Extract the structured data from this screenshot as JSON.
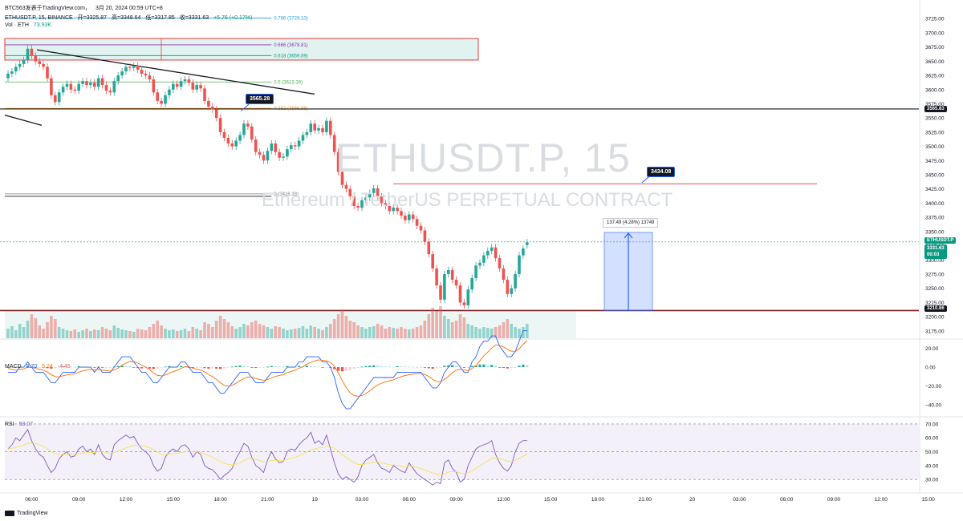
{
  "header": {
    "attribution": "BTC563发表于TradingView.com，",
    "datetime": "3月 20, 2024 00:59 UTC+8",
    "symbol_line": "ETHUSDT.P, 15, BINANCE",
    "open": "开=3325.87",
    "high": "高=3348.64",
    "low": "低=3317.85",
    "close": "收=3331.63",
    "change": "+5.76 (+0.17%)",
    "vol_label": "Vol · ETH",
    "vol_value": "73.93K"
  },
  "watermark": {
    "title": "ETHUSDT.P, 15",
    "subtitle": "Ethereum / TetherUS PERPETUAL CONTRACT"
  },
  "labels": {
    "callout_1": "3565.28",
    "callout_2": "3434.08",
    "measure": "137.49 (4.28%) 13749",
    "price_tag": "ETHUSDT.P",
    "price_value": "3331.63",
    "price_countdown": "00:03",
    "level_high": "3565.83",
    "level_low": "3210.86"
  },
  "fib_levels": [
    {
      "text": "0.786 (3726.10)",
      "price": 3726.1,
      "color": "#26a0da"
    },
    {
      "text": "0.666 (3678.81)",
      "price": 3678.81,
      "color": "#9c27b0"
    },
    {
      "text": "0.618 (3659.89)",
      "price": 3659.89,
      "color": "#089981"
    },
    {
      "text": "0.5 (3613.39)",
      "price": 3613.39,
      "color": "#4caf50"
    },
    {
      "text": "0.382 (3566.88)",
      "price": 3566.88,
      "color": "#ff9800"
    },
    {
      "text": "0 (3416.33)",
      "price": 3416.33,
      "color": "#787b86"
    }
  ],
  "macd": {
    "label": "MACD",
    "v1": "9.70",
    "v2": "5.24",
    "v3": "-4.45"
  },
  "rsi": {
    "label": "RSI",
    "v1": "58.07"
  },
  "logo": "TradingView",
  "colors": {
    "up": "#26a69a",
    "down": "#ef5350",
    "macd_line": "#2962ff",
    "signal_line": "#ff6d00",
    "rsi_line": "#7e57c2",
    "rsi_ma": "#f7e05a"
  },
  "chart_data": {
    "type": "candlestick",
    "interval": "15m",
    "price_axis": {
      "ticks": [
        3175,
        3200,
        3225,
        3250,
        3275,
        3300,
        3325,
        3350,
        3375,
        3400,
        3425,
        3450,
        3475,
        3500,
        3525,
        3550,
        3575,
        3600,
        3625,
        3650,
        3675,
        3700,
        3725
      ],
      "tick_labels": [
        "3175.00",
        "3200.00",
        "3225.00",
        "3250.00",
        "3275.00",
        "3300.00",
        "3325.00",
        "3350.00",
        "3375.00",
        "3400.00",
        "3425.00",
        "3450.00",
        "3475.00",
        "3500.00",
        "3525.00",
        "3550.00",
        "3575.00",
        "3600.00",
        "3625.00",
        "3650.00",
        "3675.00",
        "3700.00",
        "3725.00"
      ],
      "range": [
        3162,
        3738
      ]
    },
    "macd_axis": {
      "tick_labels": [
        "20.00",
        "0.00",
        "−20.00",
        "−40.00"
      ],
      "ticks": [
        20,
        0,
        -20,
        -40
      ],
      "range": [
        -50,
        28
      ]
    },
    "rsi_axis": {
      "tick_labels": [
        "70.00",
        "60.00",
        "50.00",
        "40.00",
        "30.00"
      ],
      "ticks": [
        70,
        60,
        50,
        40,
        30
      ],
      "range": [
        22,
        74
      ]
    },
    "time_axis": [
      {
        "label": "06:00",
        "index": 6
      },
      {
        "label": "09:00",
        "index": 18
      },
      {
        "label": "12:00",
        "index": 30
      },
      {
        "label": "15:00",
        "index": 42
      },
      {
        "label": "18:00",
        "index": 54
      },
      {
        "label": "21:00",
        "index": 66
      },
      {
        "label": "19",
        "index": 78
      },
      {
        "label": "03:00",
        "index": 90
      },
      {
        "label": "06:00",
        "index": 102
      },
      {
        "label": "09:00",
        "index": 114
      },
      {
        "label": "12:00",
        "index": 126
      },
      {
        "label": "15:00",
        "index": 138
      },
      {
        "label": "18:00",
        "index": 150
      },
      {
        "label": "21:00",
        "index": 162
      },
      {
        "label": "20",
        "index": 174
      },
      {
        "label": "03:00",
        "index": 186
      },
      {
        "label": "06:00",
        "index": 198
      },
      {
        "label": "09:00",
        "index": 210
      },
      {
        "label": "12:00",
        "index": 222
      },
      {
        "label": "15:00",
        "index": 234
      },
      {
        "label": "18:00",
        "index": 246
      },
      {
        "label": "21:00",
        "index": 258
      },
      {
        "label": "21",
        "index": 270
      },
      {
        "label": "03:00",
        "index": 282
      }
    ],
    "close": [
      3628,
      3632,
      3640,
      3645,
      3652,
      3672,
      3660,
      3650,
      3645,
      3640,
      3620,
      3590,
      3578,
      3595,
      3605,
      3610,
      3600,
      3598,
      3610,
      3615,
      3608,
      3612,
      3605,
      3620,
      3608,
      3598,
      3595,
      3615,
      3625,
      3632,
      3640,
      3638,
      3642,
      3635,
      3628,
      3625,
      3618,
      3595,
      3580,
      3575,
      3590,
      3600,
      3610,
      3605,
      3615,
      3618,
      3612,
      3600,
      3608,
      3602,
      3580,
      3570,
      3565,
      3550,
      3525,
      3515,
      3505,
      3500,
      3510,
      3520,
      3540,
      3535,
      3512,
      3490,
      3485,
      3475,
      3492,
      3505,
      3490,
      3480,
      3482,
      3495,
      3502,
      3500,
      3510,
      3520,
      3525,
      3540,
      3528,
      3532,
      3525,
      3545,
      3520,
      3490,
      3455,
      3432,
      3425,
      3412,
      3395,
      3392,
      3405,
      3410,
      3418,
      3426,
      3412,
      3400,
      3395,
      3386,
      3392,
      3386,
      3378,
      3370,
      3380,
      3372,
      3360,
      3352,
      3332,
      3310,
      3285,
      3255,
      3230,
      3275,
      3282,
      3265,
      3255,
      3225,
      3220,
      3248,
      3268,
      3290,
      3295,
      3308,
      3316,
      3322,
      3303,
      3285,
      3265,
      3240,
      3250,
      3275,
      3308,
      3320,
      3331
    ],
    "open": [
      3620,
      3628,
      3632,
      3640,
      3645,
      3652,
      3672,
      3660,
      3650,
      3645,
      3640,
      3620,
      3590,
      3578,
      3595,
      3605,
      3610,
      3600,
      3598,
      3610,
      3615,
      3608,
      3612,
      3605,
      3620,
      3608,
      3598,
      3595,
      3615,
      3625,
      3632,
      3640,
      3638,
      3642,
      3635,
      3628,
      3625,
      3618,
      3595,
      3580,
      3575,
      3590,
      3600,
      3610,
      3605,
      3615,
      3618,
      3612,
      3600,
      3608,
      3602,
      3580,
      3570,
      3565,
      3550,
      3525,
      3515,
      3505,
      3500,
      3510,
      3520,
      3540,
      3535,
      3512,
      3490,
      3485,
      3475,
      3492,
      3505,
      3490,
      3480,
      3482,
      3495,
      3502,
      3500,
      3510,
      3520,
      3525,
      3540,
      3528,
      3532,
      3525,
      3545,
      3520,
      3490,
      3455,
      3432,
      3425,
      3412,
      3395,
      3392,
      3405,
      3410,
      3418,
      3426,
      3412,
      3400,
      3395,
      3386,
      3392,
      3386,
      3378,
      3370,
      3380,
      3372,
      3360,
      3352,
      3332,
      3310,
      3285,
      3255,
      3230,
      3275,
      3282,
      3265,
      3255,
      3225,
      3220,
      3248,
      3268,
      3290,
      3295,
      3308,
      3316,
      3322,
      3303,
      3285,
      3265,
      3240,
      3250,
      3275,
      3308,
      3326
    ],
    "volume": [
      12,
      15,
      10,
      18,
      14,
      22,
      30,
      25,
      16,
      12,
      20,
      28,
      24,
      14,
      12,
      10,
      9,
      11,
      8,
      10,
      12,
      9,
      11,
      10,
      14,
      12,
      10,
      16,
      13,
      11,
      10,
      9,
      8,
      12,
      11,
      10,
      14,
      18,
      22,
      16,
      12,
      10,
      11,
      9,
      10,
      12,
      9,
      14,
      12,
      10,
      20,
      18,
      14,
      22,
      28,
      24,
      20,
      15,
      12,
      14,
      18,
      16,
      20,
      22,
      18,
      16,
      14,
      12,
      15,
      14,
      12,
      10,
      11,
      12,
      13,
      15,
      12,
      16,
      14,
      12,
      10,
      14,
      18,
      24,
      30,
      36,
      28,
      22,
      20,
      16,
      14,
      12,
      14,
      15,
      18,
      16,
      12,
      14,
      13,
      12,
      14,
      12,
      11,
      12,
      14,
      16,
      22,
      30,
      38,
      34,
      40,
      28,
      24,
      20,
      22,
      30,
      26,
      18,
      16,
      14,
      12,
      14,
      13,
      12,
      14,
      16,
      20,
      24,
      18,
      14,
      12,
      14,
      18
    ],
    "macd": [
      -1,
      -1,
      -1,
      0,
      0,
      1,
      0,
      -1,
      -1,
      -1,
      -2,
      -3,
      -3,
      -2,
      -1,
      -1,
      -1,
      -1,
      0,
      0,
      0,
      0,
      -1,
      0,
      -1,
      -1,
      -1,
      0,
      1,
      2,
      2,
      2,
      1,
      0,
      -1,
      -1,
      -2,
      -3,
      -3,
      -2,
      -1,
      0,
      0,
      0,
      1,
      1,
      0,
      -1,
      -1,
      -1,
      -2,
      -3,
      -3,
      -4,
      -5,
      -5,
      -4,
      -3,
      -2,
      -1,
      -1,
      -1,
      -2,
      -3,
      -3,
      -3,
      -2,
      -1,
      -1,
      -1,
      -1,
      0,
      0,
      0,
      1,
      1,
      2,
      2,
      2,
      2,
      1,
      1,
      0,
      -2,
      -5,
      -7,
      -8,
      -8,
      -7,
      -6,
      -5,
      -4,
      -3,
      -2,
      -2,
      -2,
      -2,
      -2,
      -2,
      -1,
      -1,
      -1,
      -1,
      -1,
      -1,
      -1,
      -2,
      -3,
      -4,
      -4,
      -3,
      -1,
      0,
      1,
      1,
      0,
      -1,
      -1,
      1,
      2,
      4,
      5,
      5,
      6,
      6,
      4,
      3,
      2,
      2,
      3,
      5,
      7,
      7
    ],
    "rsi": [
      52,
      55,
      60,
      58,
      62,
      66,
      58,
      52,
      48,
      46,
      40,
      35,
      38,
      45,
      48,
      50,
      46,
      47,
      52,
      54,
      50,
      52,
      48,
      55,
      48,
      45,
      44,
      55,
      58,
      60,
      62,
      60,
      61,
      56,
      52,
      50,
      47,
      40,
      36,
      38,
      46,
      50,
      52,
      50,
      54,
      55,
      52,
      46,
      50,
      48,
      40,
      38,
      37,
      34,
      30,
      33,
      35,
      38,
      45,
      50,
      56,
      54,
      46,
      40,
      38,
      35,
      44,
      50,
      45,
      42,
      43,
      50,
      52,
      51,
      55,
      58,
      60,
      64,
      56,
      58,
      55,
      62,
      52,
      42,
      34,
      30,
      32,
      30,
      28,
      32,
      40,
      44,
      46,
      48,
      42,
      38,
      37,
      35,
      40,
      38,
      36,
      35,
      42,
      38,
      34,
      32,
      30,
      28,
      26,
      28,
      27,
      42,
      44,
      38,
      35,
      28,
      30,
      40,
      46,
      52,
      54,
      55,
      56,
      58,
      48,
      42,
      38,
      36,
      40,
      50,
      56,
      58,
      58
    ]
  }
}
